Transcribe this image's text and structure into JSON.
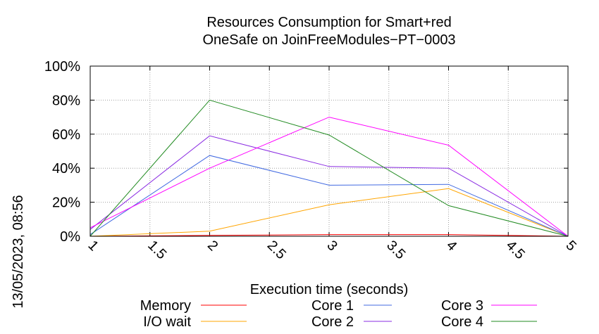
{
  "chart_data": {
    "type": "line",
    "title_line1": "Resources Consumption for Smart+red",
    "title_line2": "OneSafe on JoinFreeModules−PT−0003",
    "xlabel": "Execution time (seconds)",
    "side_label": "13/05/2023, 08:56",
    "xlim": [
      1,
      5
    ],
    "ylim": [
      0,
      100
    ],
    "x_ticks": [
      {
        "value": 1,
        "label": "1"
      },
      {
        "value": 1.5,
        "label": "1.5"
      },
      {
        "value": 2,
        "label": "2"
      },
      {
        "value": 2.5,
        "label": "2.5"
      },
      {
        "value": 3,
        "label": "3"
      },
      {
        "value": 3.5,
        "label": "3.5"
      },
      {
        "value": 4,
        "label": "4"
      },
      {
        "value": 4.5,
        "label": "4.5"
      },
      {
        "value": 5,
        "label": "5"
      }
    ],
    "y_ticks": [
      {
        "value": 0,
        "label": "0%"
      },
      {
        "value": 20,
        "label": "20%"
      },
      {
        "value": 40,
        "label": "40%"
      },
      {
        "value": 60,
        "label": "60%"
      },
      {
        "value": 80,
        "label": "80%"
      },
      {
        "value": 100,
        "label": "100%"
      }
    ],
    "grid": true,
    "legend_position": "bottom",
    "x": [
      1,
      2,
      3,
      4,
      5
    ],
    "series": [
      {
        "name": "Memory",
        "color": "#ff0000",
        "values": [
          0,
          0.5,
          1,
          1,
          0
        ]
      },
      {
        "name": "I/O wait",
        "color": "#ffa500",
        "values": [
          0,
          3,
          18.5,
          28,
          0
        ]
      },
      {
        "name": "Core 1",
        "color": "#4169e1",
        "values": [
          1,
          47.5,
          30,
          30.5,
          0
        ]
      },
      {
        "name": "Core 2",
        "color": "#8a2be2",
        "values": [
          4,
          59,
          41,
          40,
          0
        ]
      },
      {
        "name": "Core 3",
        "color": "#ff00ff",
        "values": [
          5,
          40,
          70,
          53.5,
          0
        ]
      },
      {
        "name": "Core 4",
        "color": "#228b22",
        "values": [
          0,
          80,
          59.5,
          18,
          0
        ]
      }
    ]
  }
}
